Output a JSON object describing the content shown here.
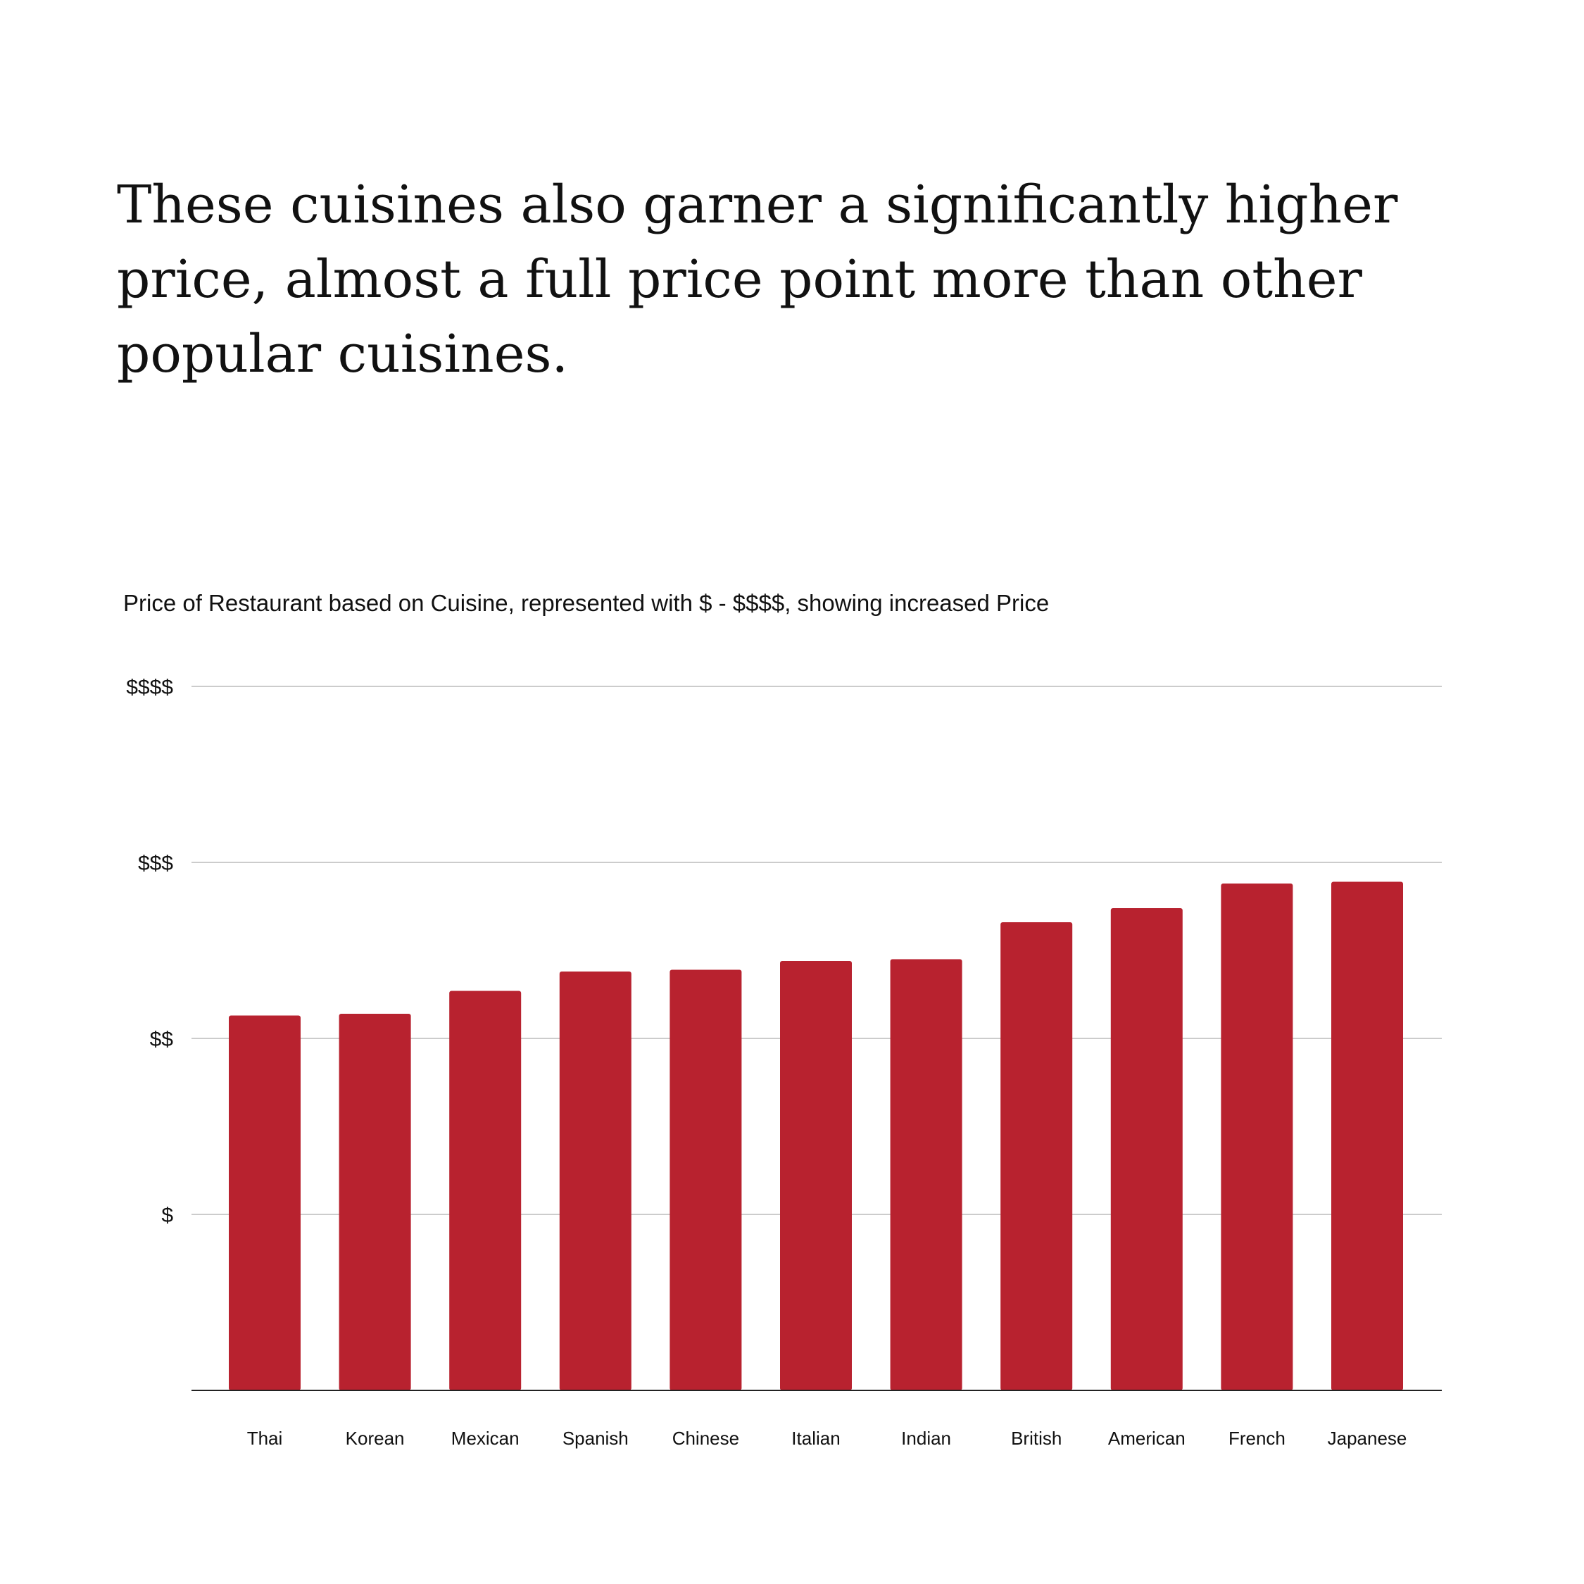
{
  "headline": "These cuisines also garner a significantly higher price, almost a full price point more than other popular cuisines.",
  "chart_data": {
    "type": "bar",
    "title": "Price of Restaurant based on Cuisine, represented with $ - $$$$, showing increased Price",
    "xlabel": "",
    "ylabel": "",
    "categories": [
      "Thai",
      "Korean",
      "Mexican",
      "Spanish",
      "Chinese",
      "Italian",
      "Indian",
      "British",
      "American",
      "French",
      "Japanese"
    ],
    "values": [
      2.13,
      2.14,
      2.27,
      2.38,
      2.39,
      2.44,
      2.45,
      2.66,
      2.74,
      2.88,
      2.89
    ],
    "ylim": [
      0,
      4
    ],
    "yticks": [
      1,
      2,
      3,
      4
    ],
    "ytick_labels": [
      "$",
      "$$",
      "$$$",
      "$$$$"
    ],
    "grid": true,
    "bar_color": "#b8222f",
    "grid_color": "#cccccc",
    "axis_color": "#222222"
  }
}
